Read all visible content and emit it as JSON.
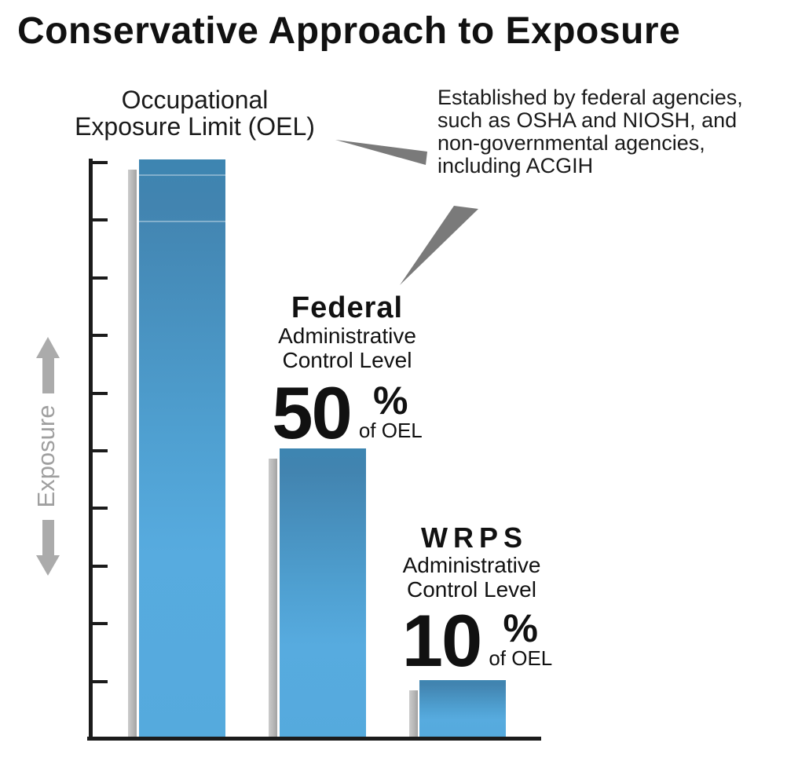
{
  "title": "Conservative Approach to Exposure",
  "annotation": {
    "lines": [
      "Established by federal agencies,",
      "such as OSHA and NIOSH, and",
      "non-governmental agencies,",
      "including ACGIH"
    ]
  },
  "labels": {
    "oel": {
      "line1": "Occupational",
      "line2": "Exposure Limit (OEL)"
    },
    "federal": {
      "title": "Federal",
      "line1": "Administrative",
      "line2": "Control Level",
      "value": "50",
      "percent": "%",
      "unit": "of OEL"
    },
    "wrps": {
      "title": "WRPS",
      "line1": "Administrative",
      "line2": "Control Level",
      "value": "10",
      "percent": "%",
      "unit": "of OEL"
    }
  },
  "colors": {
    "bar_gradient_top": "#3d85b1",
    "bar_gradient_bottom": "#55aadd",
    "shadow_bar": "#b7b7b7",
    "axis": "#1b1b1b",
    "callout_triangle": "#7a7a7a",
    "exposure_arrow": "#ababab",
    "exposure_text": "#9f9f9f"
  },
  "chart_data": {
    "type": "bar",
    "title": "Conservative Approach to Exposure",
    "categories": [
      "Occupational Exposure Limit (OEL)",
      "Federal Administrative Control Level",
      "WRPS Administrative Control Level"
    ],
    "values": [
      100,
      50,
      10
    ],
    "value_labels": [
      "",
      "50% of OEL",
      "10% of OEL"
    ],
    "unit": "% of OEL",
    "ylabel": "Exposure",
    "ylim": [
      0,
      100
    ],
    "y_tick_count": 10,
    "grid": false,
    "legend": false,
    "annotation": "Established by federal agencies, such as OSHA and NIOSH, and non-governmental agencies, including ACGIH"
  }
}
